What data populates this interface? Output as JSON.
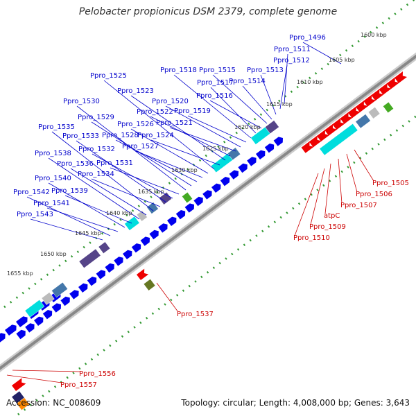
{
  "title": "Pelobacter propionicus DSM 2379, complete genome",
  "footer": {
    "accession": "Accession: NC_008609",
    "summary": "Topology: circular; Length: 4,008,000 bp; Genes: 3,643"
  },
  "colors": {
    "forward_gene": "#0000ee",
    "reverse_gene": "#ee0000",
    "forward_label": "#0000cc",
    "reverse_label": "#cc0000",
    "backbone": "#888888",
    "tick": "#339933",
    "feature_cyan": "#00dddd",
    "feature_purple": "#554488",
    "feature_steel": "#4477aa",
    "feature_green": "#44aa22"
  },
  "scale_labels": [
    "1600 kbp",
    "1605 kbp",
    "1610 kbp",
    "1615 kbp",
    "1620 kbp",
    "1625 kbp",
    "1630 kbp",
    "1635 kbp",
    "1640 kbp",
    "1645 kbp",
    "1650 kbp",
    "1655 kbp"
  ],
  "forward_labels": [
    "Ppro_1496",
    "Ppro_1511",
    "Ppro_1512",
    "Ppro_1513",
    "Ppro_1514",
    "Ppro_1515",
    "Ppro_1516",
    "Ppro_1517",
    "Ppro_1518",
    "Ppro_1519",
    "Ppro_1520",
    "Ppro_1521",
    "Ppro_1522",
    "Ppro_1523",
    "Ppro_1524",
    "Ppro_1525",
    "Ppro_1526",
    "Ppro_1527",
    "Ppro_1528",
    "Ppro_1529",
    "Ppro_1530",
    "Ppro_1531",
    "Ppro_1532",
    "Ppro_1533",
    "Ppro_1534",
    "Ppro_1535",
    "Ppro_1536",
    "Ppro_1538",
    "Ppro_1539",
    "Ppro_1540",
    "Ppro_1541",
    "Ppro_1542",
    "Ppro_1543"
  ],
  "reverse_labels": [
    "Ppro_1505",
    "Ppro_1506",
    "Ppro_1507",
    "atpC",
    "Ppro_1509",
    "Ppro_1510",
    "Ppro_1537",
    "Ppro_1556",
    "Ppro_1557"
  ]
}
